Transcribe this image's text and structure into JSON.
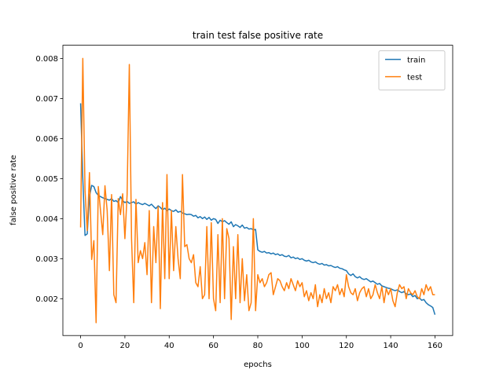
{
  "chart_data": {
    "type": "line",
    "title": "train test false positive rate",
    "x_label": "epochs",
    "y_label": "false positive rate",
    "x": [
      0,
      1,
      2,
      3,
      4,
      5,
      6,
      7,
      8,
      9,
      10,
      11,
      12,
      13,
      14,
      15,
      16,
      17,
      18,
      19,
      20,
      21,
      22,
      23,
      24,
      25,
      26,
      27,
      28,
      29,
      30,
      31,
      32,
      33,
      34,
      35,
      36,
      37,
      38,
      39,
      40,
      41,
      42,
      43,
      44,
      45,
      46,
      47,
      48,
      49,
      50,
      51,
      52,
      53,
      54,
      55,
      56,
      57,
      58,
      59,
      60,
      61,
      62,
      63,
      64,
      65,
      66,
      67,
      68,
      69,
      70,
      71,
      72,
      73,
      74,
      75,
      76,
      77,
      78,
      79,
      80,
      81,
      82,
      83,
      84,
      85,
      86,
      87,
      88,
      89,
      90,
      91,
      92,
      93,
      94,
      95,
      96,
      97,
      98,
      99,
      100,
      101,
      102,
      103,
      104,
      105,
      106,
      107,
      108,
      109,
      110,
      111,
      112,
      113,
      114,
      115,
      116,
      117,
      118,
      119,
      120,
      121,
      122,
      123,
      124,
      125,
      126,
      127,
      128,
      129,
      130,
      131,
      132,
      133,
      134,
      135,
      136,
      137,
      138,
      139,
      140,
      141,
      142,
      143,
      144,
      145,
      146,
      147,
      148,
      149,
      150,
      151,
      152,
      153,
      154,
      155,
      156,
      157,
      158,
      159,
      160
    ],
    "series": [
      {
        "name": "train",
        "color": "#1f77b4",
        "values": [
          0.00688,
          0.005,
          0.00358,
          0.00362,
          0.00455,
          0.00483,
          0.0048,
          0.00465,
          0.00458,
          0.00455,
          0.00452,
          0.0045,
          0.00448,
          0.00446,
          0.0045,
          0.00443,
          0.00445,
          0.0044,
          0.00455,
          0.00445,
          0.0044,
          0.00443,
          0.00438,
          0.0044,
          0.00442,
          0.00436,
          0.0044,
          0.00437,
          0.00435,
          0.00438,
          0.00435,
          0.00432,
          0.00436,
          0.0043,
          0.00425,
          0.00432,
          0.00428,
          0.00422,
          0.00426,
          0.0042,
          0.00424,
          0.0042,
          0.00418,
          0.00422,
          0.00416,
          0.00418,
          0.00414,
          0.00412,
          0.0041,
          0.00411,
          0.0041,
          0.00406,
          0.00408,
          0.00402,
          0.00405,
          0.004,
          0.00404,
          0.00398,
          0.00403,
          0.00396,
          0.004,
          0.00398,
          0.00388,
          0.00396,
          0.00392,
          0.00395,
          0.0039,
          0.00386,
          0.00392,
          0.0038,
          0.00385,
          0.00382,
          0.00378,
          0.00384,
          0.00376,
          0.00378,
          0.00374,
          0.00375,
          0.00372,
          0.00373,
          0.00322,
          0.00318,
          0.00316,
          0.00318,
          0.00314,
          0.00315,
          0.00312,
          0.00314,
          0.0031,
          0.00312,
          0.00308,
          0.0031,
          0.00306,
          0.00305,
          0.00308,
          0.00302,
          0.00304,
          0.003,
          0.00302,
          0.00298,
          0.003,
          0.00296,
          0.00294,
          0.00296,
          0.00292,
          0.0029,
          0.00292,
          0.00288,
          0.00286,
          0.00288,
          0.00284,
          0.00285,
          0.00282,
          0.00283,
          0.0028,
          0.00278,
          0.0028,
          0.00276,
          0.00275,
          0.00272,
          0.0027,
          0.00262,
          0.00258,
          0.00262,
          0.00255,
          0.00252,
          0.00255,
          0.0025,
          0.00248,
          0.0025,
          0.00246,
          0.00242,
          0.00244,
          0.0024,
          0.00236,
          0.00238,
          0.00232,
          0.0023,
          0.00228,
          0.00226,
          0.00225,
          0.00222,
          0.0022,
          0.00222,
          0.00218,
          0.00215,
          0.00218,
          0.00212,
          0.0021,
          0.00212,
          0.00205,
          0.00208,
          0.002,
          0.00202,
          0.00196,
          0.00198,
          0.0019,
          0.00185,
          0.00182,
          0.00178,
          0.0016
        ]
      },
      {
        "name": "test",
        "color": "#ff7f0e",
        "values": [
          0.00378,
          0.008,
          0.0047,
          0.0037,
          0.00515,
          0.00298,
          0.00345,
          0.0014,
          0.0048,
          0.0042,
          0.0036,
          0.00482,
          0.0042,
          0.0027,
          0.0046,
          0.0021,
          0.0019,
          0.0045,
          0.0041,
          0.00462,
          0.0035,
          0.0046,
          0.00785,
          0.0035,
          0.0019,
          0.00448,
          0.0029,
          0.0032,
          0.003,
          0.0034,
          0.0026,
          0.0042,
          0.0019,
          0.0038,
          0.0029,
          0.0043,
          0.00175,
          0.0044,
          0.0025,
          0.0051,
          0.0025,
          0.0042,
          0.0027,
          0.0038,
          0.003,
          0.0025,
          0.0051,
          0.0033,
          0.00335,
          0.003,
          0.0029,
          0.0031,
          0.0024,
          0.0023,
          0.0028,
          0.002,
          0.0021,
          0.0038,
          0.002,
          0.0039,
          0.002,
          0.0017,
          0.0036,
          0.0019,
          0.004,
          0.002,
          0.00375,
          0.0035,
          0.00148,
          0.0033,
          0.002,
          0.0036,
          0.0019,
          0.003,
          0.00195,
          0.0026,
          0.0017,
          0.0019,
          0.004,
          0.0017,
          0.0026,
          0.0024,
          0.0025,
          0.0023,
          0.0024,
          0.0026,
          0.00265,
          0.0021,
          0.0023,
          0.0025,
          0.00245,
          0.0023,
          0.0022,
          0.0024,
          0.00225,
          0.0025,
          0.00235,
          0.0022,
          0.00245,
          0.0023,
          0.0024,
          0.00205,
          0.0022,
          0.00195,
          0.00215,
          0.002,
          0.00235,
          0.0018,
          0.0021,
          0.0019,
          0.00225,
          0.002,
          0.00215,
          0.0019,
          0.0023,
          0.0022,
          0.00235,
          0.0021,
          0.00225,
          0.00205,
          0.0026,
          0.0023,
          0.00215,
          0.0021,
          0.00225,
          0.00195,
          0.00215,
          0.00225,
          0.0023,
          0.00205,
          0.00225,
          0.002,
          0.0021,
          0.00235,
          0.00215,
          0.002,
          0.0023,
          0.0019,
          0.00225,
          0.0021,
          0.00225,
          0.00195,
          0.0018,
          0.00215,
          0.00235,
          0.00225,
          0.0023,
          0.002,
          0.00225,
          0.00215,
          0.0021,
          0.0022,
          0.00205,
          0.002,
          0.00225,
          0.0021,
          0.00235,
          0.0022,
          0.0023,
          0.0021,
          0.0021
        ]
      }
    ],
    "xlim": [
      -8,
      168
    ],
    "xticks": [
      0,
      20,
      40,
      60,
      80,
      100,
      120,
      140,
      160
    ],
    "ylim": [
      0.00108,
      0.00833
    ],
    "yticks": [
      0.002,
      0.003,
      0.004,
      0.005,
      0.006,
      0.007,
      0.008
    ],
    "grid": false,
    "legend": "upper right"
  }
}
